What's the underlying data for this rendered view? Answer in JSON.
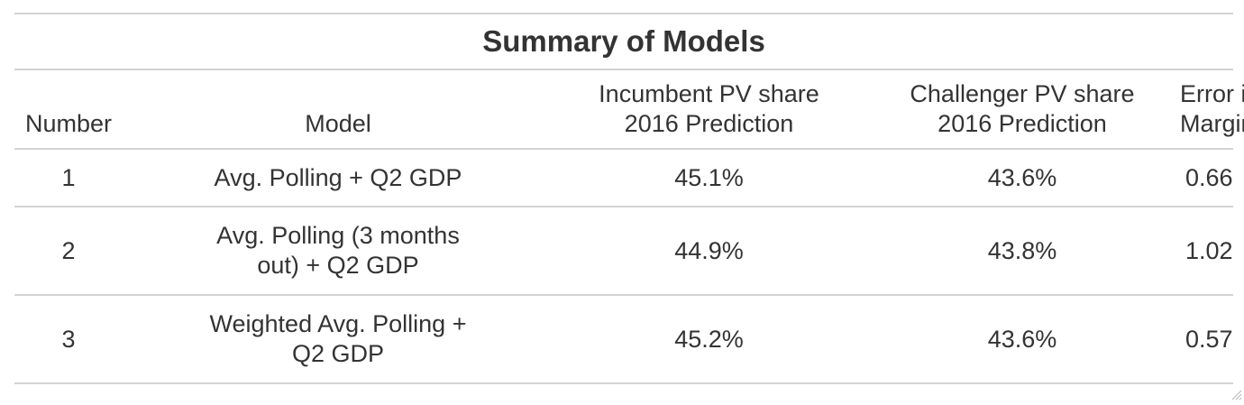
{
  "table": {
    "title": "Summary of Models",
    "headers": {
      "number": "Number",
      "model": "Model",
      "incumbent_line1": "Incumbent PV share",
      "incumbent_line2": "2016 Prediction",
      "challenger_line1": "Challenger PV share",
      "challenger_line2": "2016 Prediction",
      "error_line1": "Error in PV",
      "error_line2": "Margin"
    },
    "rows": [
      {
        "number": "1",
        "model_line1": "Avg. Polling + Q2 GDP",
        "model_line2": "",
        "incumbent": "45.1%",
        "challenger": "43.6%",
        "error": "0.66"
      },
      {
        "number": "2",
        "model_line1": "Avg. Polling (3 months",
        "model_line2": "out) + Q2 GDP",
        "incumbent": "44.9%",
        "challenger": "43.8%",
        "error": "1.02"
      },
      {
        "number": "3",
        "model_line1": "Weighted Avg. Polling +",
        "model_line2": "Q2 GDP",
        "incumbent": "45.2%",
        "challenger": "43.6%",
        "error": "0.57"
      }
    ]
  }
}
